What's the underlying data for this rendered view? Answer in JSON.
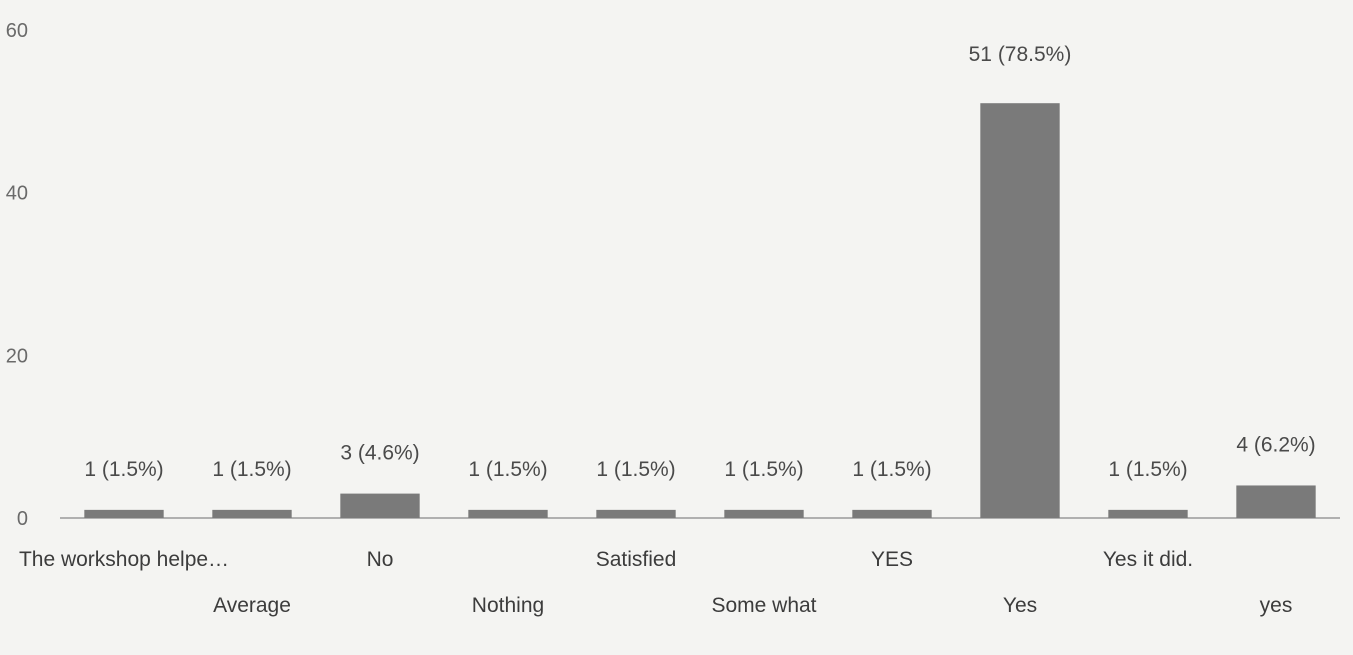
{
  "chart_data": {
    "type": "bar",
    "title": "",
    "xlabel": "",
    "ylabel": "",
    "ylim": [
      0,
      60
    ],
    "yticks": [
      "0",
      "20",
      "40",
      "60"
    ],
    "grid": false,
    "bar_color": "#7a7a7a",
    "categories": [
      "The workshop helpe…",
      "Average",
      "No",
      "Nothing",
      "Satisfied",
      "Some what",
      "YES",
      "Yes",
      "Yes it did.",
      "yes"
    ],
    "values": [
      1,
      1,
      3,
      1,
      1,
      1,
      1,
      51,
      1,
      4
    ],
    "data_labels": [
      "1 (1.5%)",
      "1 (1.5%)",
      "3 (4.6%)",
      "1 (1.5%)",
      "1 (1.5%)",
      "1 (1.5%)",
      "1 (1.5%)",
      "51 (78.5%)",
      "1 (1.5%)",
      "4 (6.2%)"
    ]
  }
}
